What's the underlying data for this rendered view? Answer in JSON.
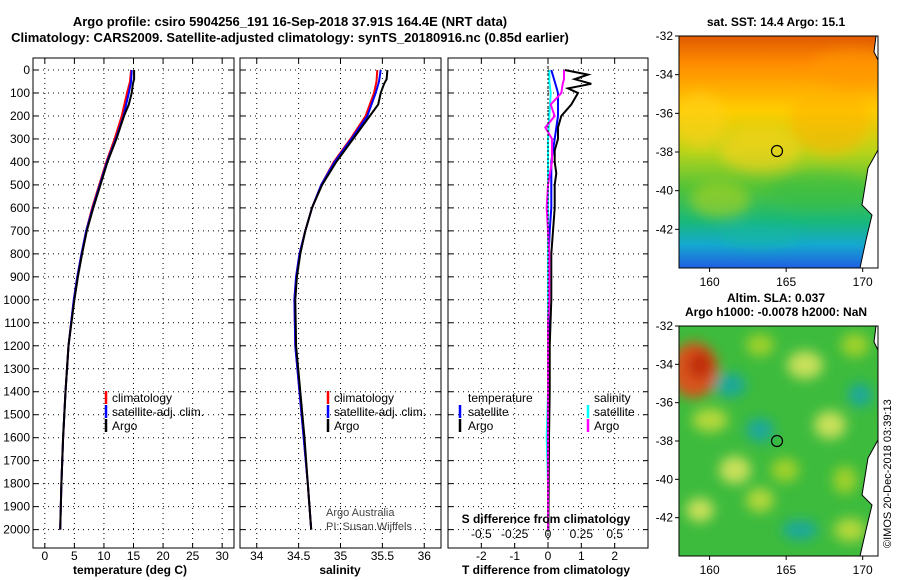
{
  "title": {
    "line1": "Argo profile: csiro 5904256_191 16-Sep-2018 37.91S 164.4E (NRT data)",
    "line2": "Climatology: CARS2009. Satellite-adjusted climatology: synTS_20180916.nc (0.85d earlier)"
  },
  "colors": {
    "climatology": "#ff0000",
    "satellite": "#0000ff",
    "argo": "#000000",
    "s_satellite": "#00ffff",
    "s_argo": "#ff00ff"
  },
  "credit": {
    "org": "Argo Australia",
    "pi": "PI: Susan Wijffels",
    "stamp": "©IMOS 20-Dec-2018 03:39:13"
  },
  "chart_data": [
    {
      "id": "temperature",
      "type": "line",
      "xlabel": "temperature (deg C)",
      "xlim": [
        -2,
        32
      ],
      "xticks": [
        "0",
        "5",
        "10",
        "15",
        "20",
        "25",
        "30"
      ],
      "xtick_values": [
        0,
        5,
        10,
        15,
        20,
        25,
        30
      ],
      "ylim": [
        0,
        2080
      ],
      "yticks": [
        "0",
        "100",
        "200",
        "300",
        "400",
        "500",
        "600",
        "700",
        "800",
        "900",
        "1000",
        "1100",
        "1200",
        "1300",
        "1400",
        "1500",
        "1600",
        "1700",
        "1800",
        "1900",
        "2000"
      ],
      "ytick_values": [
        0,
        100,
        200,
        300,
        400,
        500,
        600,
        700,
        800,
        900,
        1000,
        1100,
        1200,
        1300,
        1400,
        1500,
        1600,
        1700,
        1800,
        1900,
        2000
      ],
      "legend": [
        "climatology",
        "satellite-adj. clim.",
        "Argo"
      ],
      "series": [
        {
          "name": "climatology",
          "color": "#ff0000",
          "depth": [
            0,
            50,
            100,
            200,
            300,
            400,
            500,
            600,
            700,
            800,
            900,
            1000,
            1200,
            1400,
            1600,
            1800,
            2000
          ],
          "values": [
            14.6,
            14.4,
            13.9,
            13.0,
            11.8,
            10.4,
            9.2,
            8.0,
            7.0,
            6.2,
            5.5,
            4.9,
            4.0,
            3.5,
            3.1,
            2.8,
            2.6
          ]
        },
        {
          "name": "satellite-adj. clim.",
          "color": "#0000ff",
          "depth": [
            0,
            50,
            100,
            200,
            300,
            400,
            500,
            600,
            700,
            800,
            900,
            1000,
            1200,
            1400,
            1600,
            1800,
            2000
          ],
          "values": [
            14.7,
            14.6,
            14.2,
            13.3,
            12.0,
            10.5,
            9.3,
            8.1,
            7.0,
            6.2,
            5.5,
            4.9,
            4.0,
            3.5,
            3.1,
            2.8,
            2.6
          ]
        },
        {
          "name": "Argo",
          "color": "#000000",
          "depth": [
            0,
            40,
            60,
            100,
            150,
            200,
            300,
            400,
            500,
            600,
            700,
            800,
            900,
            1000,
            1200,
            1400,
            1600,
            1800,
            2000
          ],
          "values": [
            15.1,
            15.1,
            14.9,
            14.7,
            14.2,
            13.4,
            12.1,
            10.6,
            9.4,
            8.2,
            7.1,
            6.3,
            5.6,
            5.0,
            4.0,
            3.5,
            3.1,
            2.8,
            2.6
          ]
        }
      ]
    },
    {
      "id": "salinity",
      "type": "line",
      "xlabel": "salinity",
      "xlim": [
        33.8,
        36.2
      ],
      "xticks": [
        "34",
        "34.5",
        "35",
        "35.5",
        "36"
      ],
      "xtick_values": [
        34,
        34.5,
        35,
        35.5,
        36
      ],
      "ylim": [
        0,
        2080
      ],
      "legend": [
        "climatology",
        "satellite-adj. clim.",
        "Argo"
      ],
      "series": [
        {
          "name": "climatology",
          "color": "#ff0000",
          "depth": [
            0,
            50,
            100,
            200,
            300,
            400,
            500,
            600,
            700,
            800,
            900,
            1000,
            1200,
            1400,
            1600,
            1800,
            2000
          ],
          "values": [
            35.44,
            35.43,
            35.4,
            35.3,
            35.12,
            34.92,
            34.77,
            34.66,
            34.58,
            34.51,
            34.47,
            34.45,
            34.46,
            34.51,
            34.56,
            34.61,
            34.65
          ]
        },
        {
          "name": "satellite-adj. clim.",
          "color": "#0000ff",
          "depth": [
            0,
            50,
            100,
            200,
            300,
            400,
            500,
            600,
            700,
            800,
            900,
            1000,
            1200,
            1400,
            1600,
            1800,
            2000
          ],
          "values": [
            35.48,
            35.46,
            35.42,
            35.32,
            35.13,
            34.93,
            34.77,
            34.66,
            34.58,
            34.51,
            34.47,
            34.45,
            34.46,
            34.51,
            34.56,
            34.61,
            34.65
          ]
        },
        {
          "name": "Argo",
          "color": "#000000",
          "depth": [
            0,
            40,
            60,
            100,
            150,
            200,
            300,
            400,
            500,
            600,
            700,
            800,
            900,
            1000,
            1200,
            1400,
            1600,
            1800,
            2000
          ],
          "values": [
            35.56,
            35.55,
            35.52,
            35.48,
            35.45,
            35.35,
            35.15,
            34.95,
            34.78,
            34.66,
            34.58,
            34.52,
            34.48,
            34.46,
            34.47,
            34.52,
            34.57,
            34.61,
            34.65
          ]
        }
      ]
    },
    {
      "id": "difference",
      "type": "line",
      "xlabel": "T difference from climatology",
      "xlabel2": "S difference from climatology",
      "xlim": [
        -3,
        3
      ],
      "xticks": [
        "-2",
        "-1",
        "0",
        "1",
        "2"
      ],
      "xtick_values": [
        -2,
        -1,
        0,
        1,
        2
      ],
      "s_xticks": [
        "-0.5",
        "-0.25",
        "0",
        "0.25",
        "0.5"
      ],
      "s_xtick_values": [
        -0.5,
        -0.25,
        0,
        0.25,
        0.5
      ],
      "ylim": [
        0,
        2080
      ],
      "legend_t_title": "temperature",
      "legend_s_title": "salinity",
      "legend_t": [
        "satellite",
        "Argo"
      ],
      "legend_s": [
        "satellite",
        "Argo"
      ],
      "series": [
        {
          "name": "T satellite",
          "color": "#0000ff",
          "depth": [
            0,
            50,
            100,
            200,
            300,
            400,
            500,
            600,
            700,
            800,
            900,
            1000,
            1200,
            1400,
            1600,
            1800,
            2000
          ],
          "values": [
            0.1,
            0.2,
            0.3,
            0.3,
            0.2,
            0.1,
            0.1,
            0.1,
            0.05,
            0.02,
            0.02,
            0.02,
            0.02,
            0.02,
            0.02,
            0.01,
            0.0
          ]
        },
        {
          "name": "T Argo",
          "color": "#000000",
          "depth": [
            0,
            20,
            40,
            60,
            80,
            100,
            150,
            200,
            250,
            300,
            350,
            400,
            450,
            500,
            600,
            700,
            800,
            900,
            1000,
            1200,
            1400,
            1600,
            1800,
            2000
          ],
          "values": [
            0.5,
            1.2,
            0.8,
            1.3,
            0.6,
            0.9,
            0.7,
            0.4,
            0.3,
            0.3,
            0.2,
            0.2,
            0.25,
            0.2,
            0.2,
            0.15,
            0.1,
            0.1,
            0.1,
            0.05,
            0.05,
            0.03,
            0.02,
            0.01
          ]
        },
        {
          "name": "S satellite",
          "color": "#00ffff",
          "depth": [
            0,
            50,
            100,
            200,
            300,
            400,
            500,
            600,
            700,
            800,
            900,
            1000,
            1200,
            1400,
            1600,
            1800,
            2000
          ],
          "values": [
            0.01,
            0.01,
            0.02,
            0.01,
            0.0,
            0.0,
            0.0,
            0.0,
            0.0,
            0.0,
            0.0,
            0.0,
            0.0,
            0.0,
            -0.01,
            0.0,
            0.0
          ]
        },
        {
          "name": "S Argo",
          "color": "#ff00ff",
          "depth": [
            0,
            40,
            60,
            100,
            150,
            200,
            250,
            300,
            400,
            500,
            600,
            700,
            800,
            900,
            1000,
            1100,
            1200,
            1400,
            1600,
            1800,
            2000
          ],
          "values": [
            0.12,
            0.12,
            0.11,
            0.1,
            0.02,
            0.05,
            -0.02,
            0.03,
            0.03,
            0.0,
            -0.01,
            0.0,
            0.01,
            0.01,
            0.01,
            0.0,
            0.0,
            0.0,
            0.0,
            0.0,
            0.0
          ]
        }
      ]
    },
    {
      "id": "sst_map",
      "type": "heatmap",
      "title": "sat. SST: 14.4 Argo: 15.1",
      "xlim": [
        158,
        171
      ],
      "ylim": [
        -44,
        -32
      ],
      "xticks": [
        "160",
        "165",
        "170"
      ],
      "xtick_values": [
        160,
        165,
        170
      ],
      "yticks": [
        "-32",
        "-34",
        "-36",
        "-38",
        "-40",
        "-42"
      ],
      "ytick_values": [
        -32,
        -34,
        -36,
        -38,
        -40,
        -42
      ],
      "profile_lon": 164.4,
      "profile_lat": -37.91
    },
    {
      "id": "sla_map",
      "type": "heatmap",
      "title": "Altim. SLA: 0.037",
      "subtitle": "Argo h1000: -0.0078 h2000: NaN",
      "xlim": [
        158,
        171
      ],
      "ylim": [
        -44,
        -32
      ],
      "xticks": [
        "160",
        "165",
        "170"
      ],
      "xtick_values": [
        160,
        165,
        170
      ],
      "yticks": [
        "-32",
        "-34",
        "-36",
        "-38",
        "-40",
        "-42"
      ],
      "ytick_values": [
        -32,
        -34,
        -36,
        -38,
        -40,
        -42
      ],
      "profile_lon": 164.4,
      "profile_lat": -37.91
    }
  ]
}
